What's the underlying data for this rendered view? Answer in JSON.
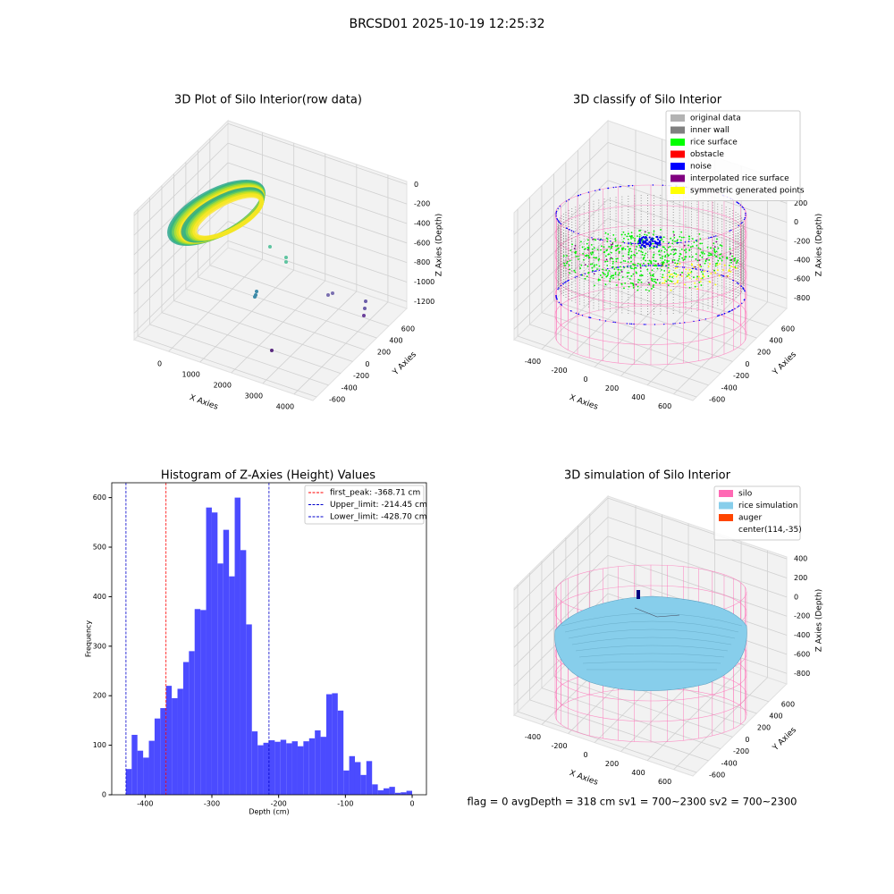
{
  "title": "BRCSD01 2025-10-19 12:25:32",
  "footer": "flag = 0     avgDepth = 318 cm  sv1 = 700~2300  sv2 = 700~2300",
  "chart_data": [
    {
      "type": "scatter3d",
      "title": "3D Plot of Silo Interior(row data)",
      "xlabel": "X Axies",
      "ylabel": "Y Axies",
      "zlabel": "Z Axies (Depth)",
      "xlim": [
        -1100,
        4600
      ],
      "xticks": [
        0,
        1000,
        2000,
        3000,
        4000
      ],
      "ylim": [
        -660,
        900
      ],
      "yticks": [
        -600,
        -400,
        -200,
        0,
        200,
        400,
        600
      ],
      "zlim": [
        -1270,
        30
      ],
      "zticks": [
        0,
        -200,
        -400,
        -600,
        -800,
        -1000,
        -1200
      ]
    },
    {
      "type": "scatter3d",
      "title": "3D classify of Silo Interior",
      "xlabel": "X Axies",
      "ylabel": "Y Axies",
      "zlabel": "Z Axies (Depth)",
      "xlim": [
        -610,
        745
      ],
      "xticks": [
        -400,
        -200,
        0,
        200,
        400,
        600
      ],
      "ylim": [
        -660,
        900
      ],
      "yticks": [
        -600,
        -400,
        -200,
        0,
        200,
        400,
        600
      ],
      "zlim": [
        -910,
        430
      ],
      "zticks": [
        200,
        0,
        -200,
        -400,
        -600,
        -800
      ],
      "legend_loc": "upper right",
      "legend": [
        {
          "label": "original data",
          "color": "#b3b3b3"
        },
        {
          "label": "inner wall",
          "color": "#808080"
        },
        {
          "label": "rice surface",
          "color": "#00ff00"
        },
        {
          "label": "obstacle",
          "color": "#ff0000"
        },
        {
          "label": "noise",
          "color": "#0000ff"
        },
        {
          "label": "interpolated rice surface",
          "color": "#800080"
        },
        {
          "label": "symmetric generated points",
          "color": "#ffff00"
        }
      ]
    },
    {
      "type": "histogram",
      "title": "Histogram of Z-Axies (Height) Values",
      "xlabel": "Depth (cm)",
      "ylabel": "Frequency",
      "color": "#4b4bff",
      "bins": [
        -428.7,
        -420.13,
        -411.55,
        -402.98,
        -394.4,
        -385.83,
        -377.26,
        -368.68,
        -360.11,
        -351.53,
        -342.96,
        -334.39,
        -325.81,
        -317.24,
        -308.66,
        -300.09,
        -291.52,
        -282.94,
        -274.37,
        -265.79,
        -257.22,
        -248.65,
        -240.07,
        -231.5,
        -222.92,
        -214.35,
        -205.78,
        -197.2,
        -188.63,
        -180.05,
        -171.48,
        -162.91,
        -154.33,
        -145.76,
        -137.18,
        -128.61,
        -120.04,
        -111.46,
        -102.89,
        -94.31,
        -85.74,
        -77.17,
        -68.59,
        -60.02,
        -51.44,
        -42.87,
        -34.3,
        -25.72,
        -17.15,
        -8.57,
        0
      ],
      "values": [
        52,
        121,
        89,
        75,
        109,
        154,
        175,
        220,
        195,
        214,
        268,
        290,
        375,
        373,
        580,
        570,
        467,
        535,
        441,
        600,
        494,
        344,
        128,
        100,
        105,
        110,
        107,
        111,
        104,
        108,
        98,
        108,
        114,
        130,
        117,
        203,
        205,
        170,
        49,
        78,
        66,
        40,
        68,
        21,
        9,
        13,
        16,
        4,
        5,
        8
      ],
      "xlim": [
        -450,
        21.4
      ],
      "xticks": [
        -400,
        -300,
        -200,
        -100,
        0
      ],
      "ylim": [
        0,
        630
      ],
      "yticks": [
        0,
        100,
        200,
        300,
        400,
        500,
        600
      ],
      "legend_loc": "upper right",
      "vlines": [
        {
          "label": "first_peak: -368.71 cm",
          "value": -368.71,
          "color": "#ff0000"
        },
        {
          "label": "Upper_limit: -214.45 cm",
          "value": -214.45,
          "color": "#0000cc"
        },
        {
          "label": "Lower_limit: -428.70 cm",
          "value": -428.7,
          "color": "#0000cc"
        }
      ]
    },
    {
      "type": "surface3d",
      "title": "3D simulation of Silo Interior",
      "xlabel": "X Axies",
      "ylabel": "Y Axies",
      "zlabel": "Z Axies (Depth)",
      "xlim": [
        -610,
        745
      ],
      "xticks": [
        -400,
        -200,
        0,
        200,
        400,
        600
      ],
      "ylim": [
        -660,
        900
      ],
      "yticks": [
        -600,
        -400,
        -200,
        0,
        200,
        400,
        600
      ],
      "zlim": [
        -910,
        420
      ],
      "zticks": [
        400,
        200,
        0,
        -200,
        -400,
        -600,
        -800
      ],
      "legend_loc": "upper right",
      "legend": [
        {
          "label": "silo",
          "color": "#ff69b4"
        },
        {
          "label": "rice simulation",
          "color": "#87ceeb"
        },
        {
          "label": "auger",
          "color": "#ff4500"
        },
        {
          "label": "center(114,-35)"
        }
      ]
    }
  ]
}
